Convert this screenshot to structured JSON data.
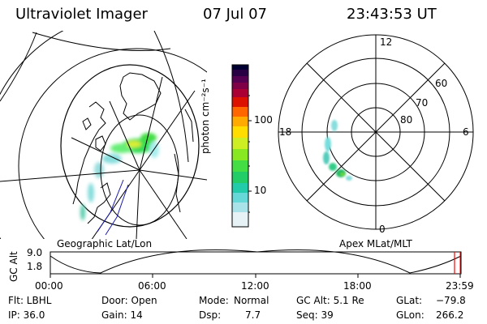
{
  "header": {
    "instrument": "Ultraviolet Imager",
    "date": "07 Jul 07",
    "time": "23:43:53 UT"
  },
  "left_panel": {
    "label": "Geographic Lat/Lon"
  },
  "colorbar": {
    "unit_label": "photon cm⁻²s⁻¹",
    "ticks": [
      "100",
      "10"
    ],
    "colors": [
      "#000033",
      "#330044",
      "#660055",
      "#99004d",
      "#cc0033",
      "#ee3300",
      "#ff8800",
      "#ffcc00",
      "#ccff33",
      "#66ee33",
      "#22dd55",
      "#22ccaa",
      "#77dddd",
      "#bbe8ee",
      "#ffffff"
    ]
  },
  "polar_panel": {
    "label": "Apex MLat/MLT",
    "mlt_labels": [
      "12",
      "18",
      "6",
      "0"
    ],
    "lat_labels": [
      "60",
      "70",
      "80"
    ]
  },
  "altitude_strip": {
    "axis_label": "GC Alt",
    "y_ticks": [
      "9.0",
      "1.8"
    ],
    "x_ticks": [
      "00:00",
      "06:00",
      "12:00",
      "18:00",
      "23:59"
    ],
    "marker_color": "#ff0000"
  },
  "status": {
    "filter": "Flt: LBHL",
    "ip": "IP: 36.0",
    "door": "Door: Open",
    "gain": "Gain: 14",
    "mode_label": "Mode:",
    "mode_value": "Normal",
    "dsp_label": "Dsp:",
    "dsp_value": "7.7",
    "gc_alt": "GC Alt: 5.1 Re",
    "seq": "Seq: 39",
    "glat_label": "GLat:",
    "glat_value": "−79.8",
    "glon_label": "GLon:",
    "glon_value": "266.2"
  }
}
